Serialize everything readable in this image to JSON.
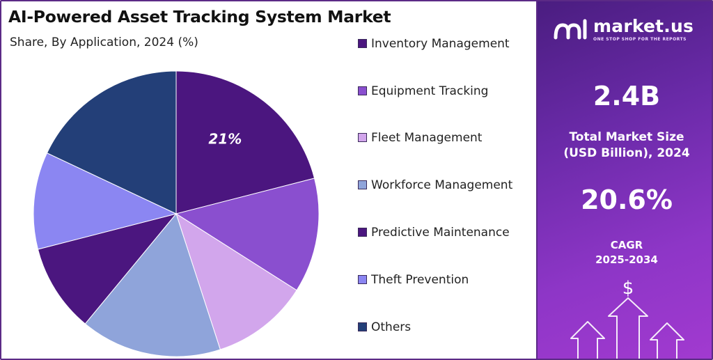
{
  "header": {
    "title": "AI-Powered Asset Tracking System Market",
    "subtitle": "Share, By Application, 2024 (%)"
  },
  "chart_data": {
    "type": "pie",
    "title": "AI-Powered Asset Tracking System Market",
    "subtitle": "Share, By Application, 2024 (%)",
    "categories": [
      "Inventory Management",
      "Equipment Tracking",
      "Fleet Management",
      "Workforce Management",
      "Predictive Maintenance",
      "Theft Prevention",
      "Others"
    ],
    "values": [
      21,
      13,
      11,
      16,
      10,
      11,
      18
    ],
    "colors": [
      "#4b167f",
      "#8a4fcf",
      "#d2a6ec",
      "#8fa4da",
      "#4b167f",
      "#8b86f2",
      "#233f78"
    ],
    "data_labels": [
      {
        "index": 0,
        "text": "21%"
      }
    ],
    "legend_placement": "right"
  },
  "legend": {
    "items": [
      {
        "label": "Inventory Management",
        "color": "#4b167f"
      },
      {
        "label": "Equipment Tracking",
        "color": "#8a4fcf"
      },
      {
        "label": "Fleet Management",
        "color": "#d2a6ec"
      },
      {
        "label": "Workforce Management",
        "color": "#8fa4da"
      },
      {
        "label": "Predictive Maintenance",
        "color": "#4b167f"
      },
      {
        "label": "Theft Prevention",
        "color": "#8b86f2"
      },
      {
        "label": "Others",
        "color": "#233f78"
      }
    ]
  },
  "sidebar": {
    "brand_name": "market.us",
    "brand_tagline": "ONE STOP SHOP FOR THE REPORTS",
    "market_size_value": "2.4B",
    "market_size_label_1": "Total Market Size",
    "market_size_label_2": "(USD Billion), 2024",
    "cagr_value": "20.6%",
    "cagr_label_1": "CAGR",
    "cagr_label_2": "2025-2034",
    "dollar_symbol": "$",
    "icons": [
      "market-us-logo-icon",
      "growth-arrows-icon"
    ]
  }
}
